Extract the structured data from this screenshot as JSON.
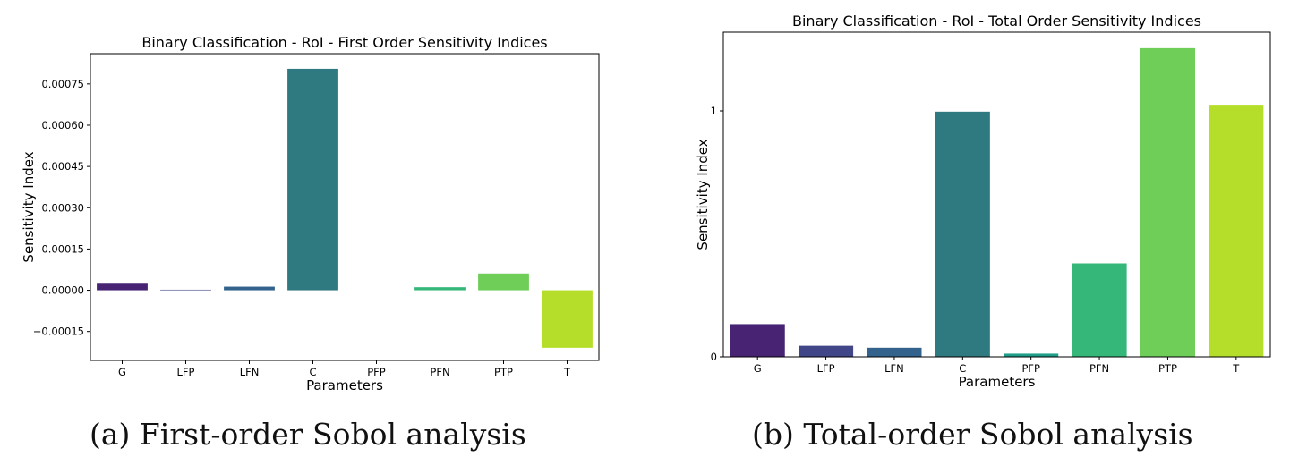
{
  "chart_data": [
    {
      "type": "bar",
      "title": "Binary Classification - RoI - First Order Sensitivity Indices",
      "xlabel": "Parameters",
      "ylabel": "Sensitivity Index",
      "categories": [
        "G",
        "LFP",
        "LFN",
        "C",
        "PFP",
        "PFN",
        "PTP",
        "T"
      ],
      "values": [
        2.7e-05,
        2e-06,
        1.3e-05,
        0.000805,
        0.0,
        1.1e-05,
        6.1e-05,
        -0.000209
      ],
      "colors": [
        "#482374",
        "#404688",
        "#33638d",
        "#2f7a80",
        "#1f9e89",
        "#35b779",
        "#6ece58",
        "#b5de2b"
      ],
      "ylim": [
        -0.000255,
        0.00086
      ],
      "yticks": [
        -0.00015,
        0.0,
        0.00015,
        0.0003,
        0.00045,
        0.0006,
        0.00075
      ],
      "ytick_labels": [
        "−0.00015",
        "0.00000",
        "0.00015",
        "0.00030",
        "0.00045",
        "0.00060",
        "0.00075"
      ],
      "grid": false,
      "caption": "(a) First-order Sobol analysis"
    },
    {
      "type": "bar",
      "title": "Binary Classification - RoI - Total Order Sensitivity Indices",
      "xlabel": "Parameters",
      "ylabel": "Sensitivity Index",
      "categories": [
        "G",
        "LFP",
        "LFN",
        "C",
        "PFP",
        "PFN",
        "PTP",
        "T"
      ],
      "values": [
        0.133,
        0.045,
        0.037,
        0.997,
        0.013,
        0.38,
        1.255,
        1.025
      ],
      "colors": [
        "#482374",
        "#404688",
        "#33638d",
        "#2f7a80",
        "#1f9e89",
        "#35b779",
        "#6ece58",
        "#b5de2b"
      ],
      "ylim": [
        0,
        1.32
      ],
      "yticks": [
        0,
        1
      ],
      "ytick_labels": [
        "0",
        "1"
      ],
      "grid": false,
      "caption": "(b) Total-order Sobol analysis"
    }
  ]
}
